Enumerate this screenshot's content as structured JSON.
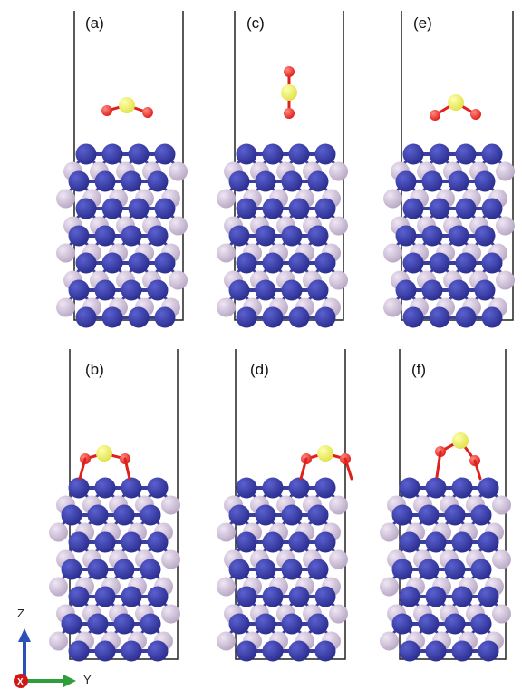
{
  "panels": [
    {
      "id": "a",
      "label": "(a)",
      "state": "gas-phase molecule, bent, above slab"
    },
    {
      "id": "c",
      "label": "(c)",
      "state": "gas-phase molecule, vertical, above slab"
    },
    {
      "id": "e",
      "label": "(e)",
      "state": "gas-phase molecule, bent, O-down, above slab"
    },
    {
      "id": "b",
      "label": "(b)",
      "state": "adsorbed, bridging"
    },
    {
      "id": "d",
      "label": "(d)",
      "state": "adsorbed, bridging, shifted right"
    },
    {
      "id": "f",
      "label": "(f)",
      "state": "adsorbed, O-down, bridging"
    }
  ],
  "axes": {
    "z_label": "Z",
    "y_label": "Y",
    "x_label": "X"
  },
  "colors": {
    "metal_atom": "#2b2e8f",
    "nonmetal_atom": "#b9a9c6",
    "sulfur_atom": "#e2e24a",
    "oxygen_atom": "#e0201c",
    "bond": "#3b3f9c",
    "cell_line": "#222222",
    "z_arrow": "#2b50b8",
    "y_arrow": "#2e9e3a",
    "x_dot": "#d01818"
  }
}
